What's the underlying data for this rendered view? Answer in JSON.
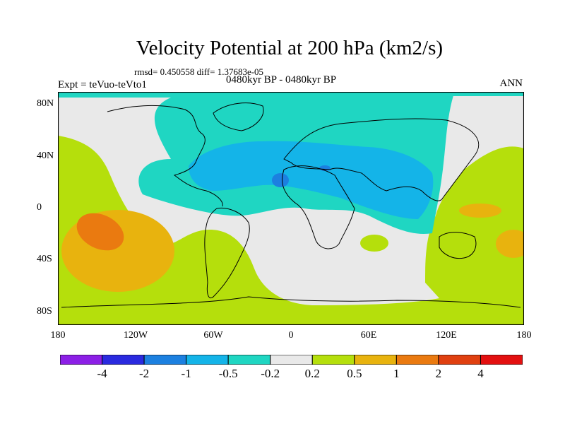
{
  "title": "Velocity Potential at 200 hPa (km2/s)",
  "stats_line": "rmsd= 0.450558 diff= 1.37683e-05",
  "left_label": "Expt = teVuo-teVto1",
  "center_label": "0480kyr BP - 0480kyr BP",
  "right_label": "ANN",
  "map": {
    "lat_ticks": [
      "80N",
      "40N",
      "0",
      "40S",
      "80S"
    ],
    "lat_values": [
      80,
      40,
      0,
      -40,
      -80
    ],
    "lon_ticks": [
      "180",
      "120W",
      "60W",
      "0",
      "60E",
      "120E",
      "180"
    ],
    "lon_values": [
      -180,
      -120,
      -60,
      0,
      60,
      120,
      180
    ],
    "lat_range": [
      -90,
      90
    ],
    "lon_range": [
      -180,
      180
    ]
  },
  "colorbar": {
    "labels": [
      "-4",
      "-2",
      "-1",
      "-0.5",
      "-0.2",
      "0.2",
      "0.5",
      "1",
      "2",
      "4"
    ],
    "colors": [
      "#8c1fe6",
      "#2a2adf",
      "#1c80e0",
      "#14b4e8",
      "#1fd6c2",
      "#e9e9e9",
      "#b5df0c",
      "#e8b30e",
      "#ea7a10",
      "#e04010",
      "#e31010"
    ]
  }
}
